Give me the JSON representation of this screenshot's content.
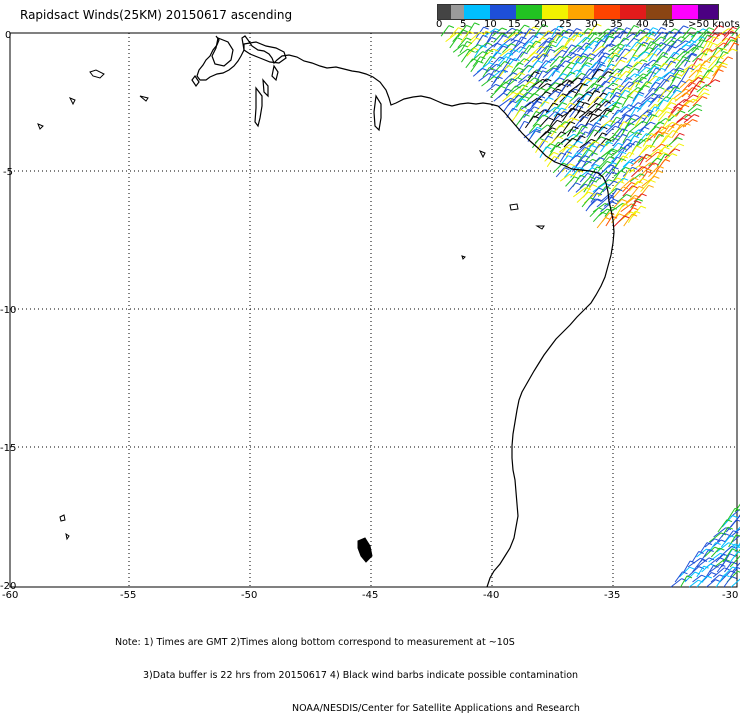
{
  "title": "Rapidsact Winds(25KM) 20150617 ascending",
  "legend": {
    "labels": [
      "0",
      "5",
      "10",
      "15",
      "20",
      "25",
      "30",
      "35",
      "40",
      "45",
      ">50 knots"
    ],
    "colors": [
      "#555555",
      "#9a9a9a",
      "#00bfff",
      "#1e4fd8",
      "#22c322",
      "#f2f200",
      "#ffa500",
      "#ff5500",
      "#e21b1b",
      "#8b4513",
      "#ff00ff",
      "#9a00c8",
      "#4b0082"
    ]
  },
  "axes": {
    "lon_ticks": [
      "-60",
      "-55",
      "-50",
      "-45",
      "-40",
      "-35",
      "-30"
    ],
    "lat_ticks": [
      "0",
      "-5",
      "-10",
      "-15",
      "-20"
    ]
  },
  "notes": {
    "line1": "Note: 1) Times are GMT 2)Times along bottom correspond to measurement at ~10S",
    "line2": "3)Data buffer is 22 hrs from 20150617 4) Black wind barbs indicate possible contamination",
    "line3": "NOAA/NESDIS/Center for Satellite Applications and Research"
  }
}
